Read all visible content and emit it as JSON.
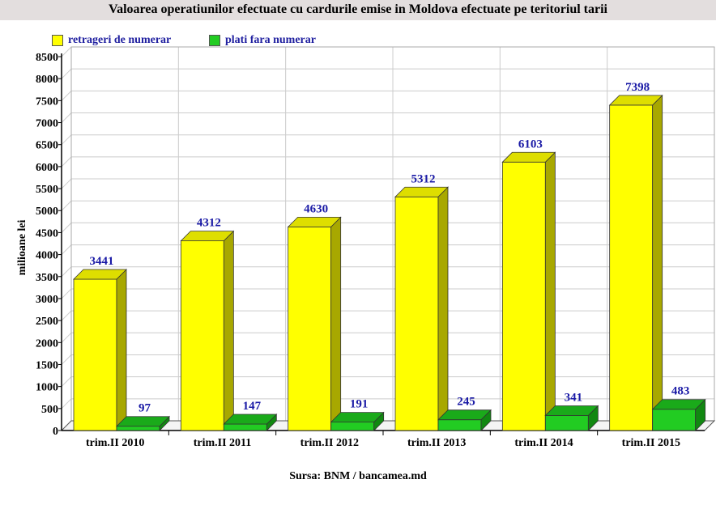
{
  "chart_data": {
    "type": "bar",
    "title": "Valoarea operatiunilor efectuate cu cardurile emise in Moldova efectuate pe teritoriul tarii",
    "ylabel": "milioane lei",
    "xlabel": "",
    "categories": [
      "trim.II 2010",
      "trim.II 2011",
      "trim.II 2012",
      "trim.II 2013",
      "trim.II 2014",
      "trim.II 2015"
    ],
    "series": [
      {
        "name": "retrageri de numerar",
        "values": [
          3441,
          4312,
          4630,
          5312,
          6103,
          7398
        ],
        "color": "#ffff00",
        "side": "#a8a800",
        "top": "#dede00"
      },
      {
        "name": "plati fara numerar",
        "values": [
          97,
          147,
          191,
          245,
          341,
          483
        ],
        "color": "#22cc22",
        "side": "#118811",
        "top": "#1aaa1a"
      }
    ],
    "ylim": [
      0,
      8500
    ],
    "ytick_step": 500,
    "grid": true,
    "legend": "top-left",
    "three_d": true
  },
  "source": "Sursa: BNM / bancamea.md"
}
